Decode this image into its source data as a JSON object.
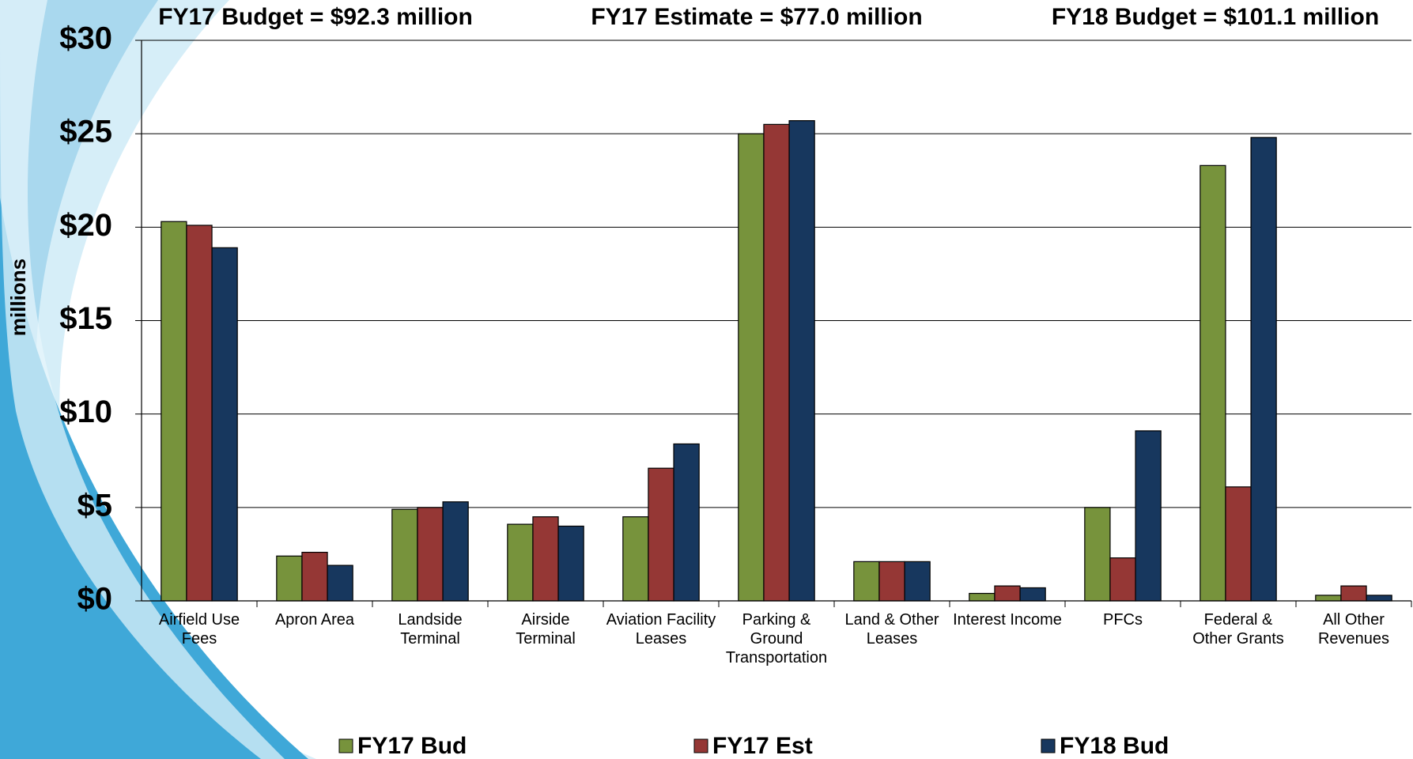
{
  "chart_data": {
    "type": "bar",
    "annotations": [
      "FY17 Budget = $92.3 million",
      "FY17 Estimate = $77.0 million",
      "FY18 Budget = $101.1 million"
    ],
    "y_label": "millions",
    "categories": [
      "Airfield Use Fees",
      "Apron Area",
      "Landside Terminal",
      "Airside Terminal",
      "Aviation Facility Leases",
      "Parking & Ground Transportation",
      "Land & Other Leases",
      "Interest Income",
      "PFCs",
      "Federal & Other Grants",
      "All Other Revenues"
    ],
    "series": [
      {
        "name": "FY17 Bud",
        "color": "#77933c",
        "values": [
          20.3,
          2.4,
          4.9,
          4.1,
          4.5,
          25.0,
          2.1,
          0.4,
          5.0,
          23.3,
          0.3
        ]
      },
      {
        "name": "FY17 Est",
        "color": "#953735",
        "values": [
          20.1,
          2.6,
          5.0,
          4.5,
          7.1,
          25.5,
          2.1,
          0.8,
          2.3,
          6.1,
          0.8
        ]
      },
      {
        "name": "FY18 Bud",
        "color": "#17375e",
        "values": [
          18.9,
          1.9,
          5.3,
          4.0,
          8.4,
          25.7,
          2.1,
          0.7,
          9.1,
          24.8,
          0.3
        ]
      }
    ],
    "ylim": [
      0,
      30
    ],
    "yticks": [
      {
        "value": 0,
        "label": "$0"
      },
      {
        "value": 5,
        "label": "$5"
      },
      {
        "value": 10,
        "label": "$10"
      },
      {
        "value": 15,
        "label": "$15"
      },
      {
        "value": 20,
        "label": "$20"
      },
      {
        "value": 25,
        "label": "$25"
      },
      {
        "value": 30,
        "label": "$30"
      }
    ],
    "grid": true,
    "legend": "bottom"
  }
}
